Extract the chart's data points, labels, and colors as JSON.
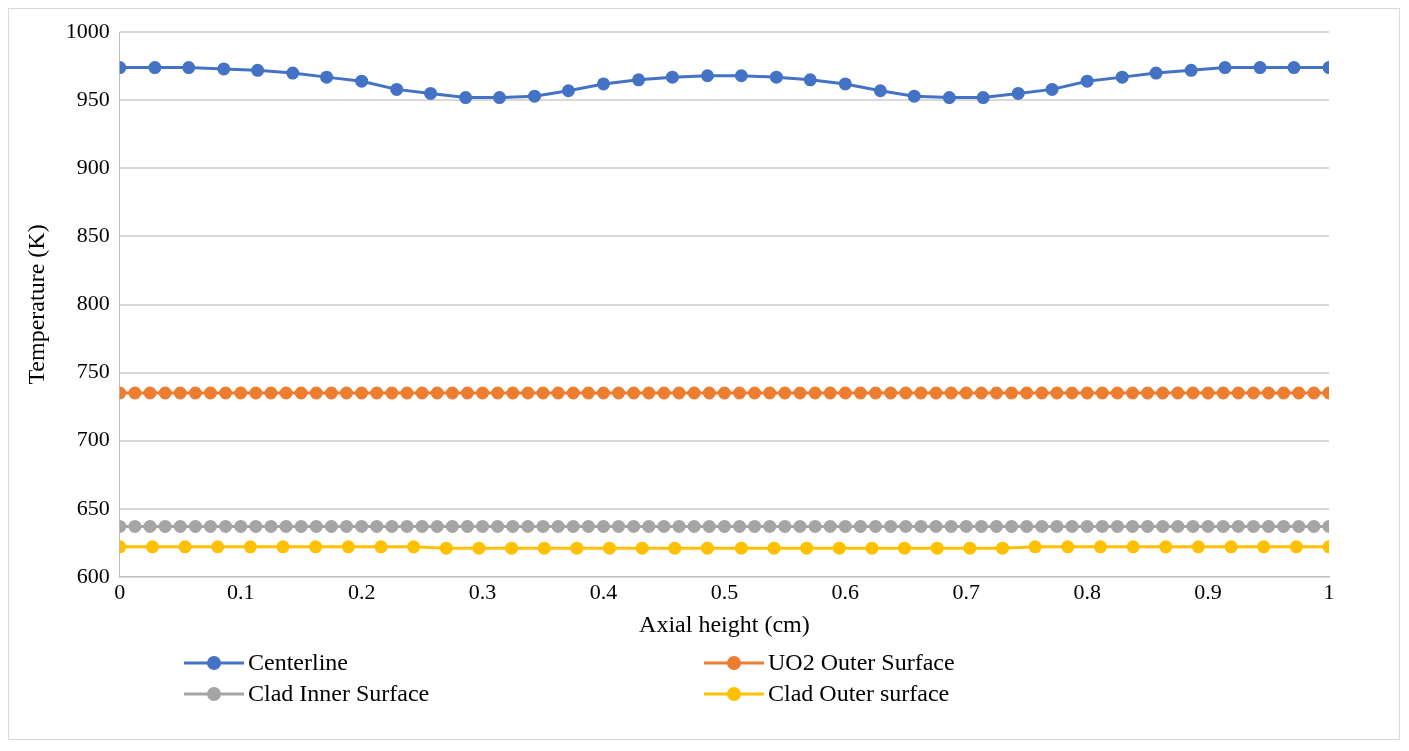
{
  "chart_data": {
    "type": "line",
    "xlabel": "Axial height (cm)",
    "ylabel": "Temperature (K)",
    "xlim": [
      0,
      1
    ],
    "xticks": [
      0,
      0.1,
      0.2,
      0.3,
      0.4,
      0.5,
      0.6,
      0.7,
      0.8,
      0.9,
      1
    ],
    "ylim": [
      600,
      1000
    ],
    "yticks": [
      600,
      650,
      700,
      750,
      800,
      850,
      900,
      950,
      1000
    ],
    "grid": "y",
    "legend": "bottom",
    "marker": "circle",
    "line_style": "solid",
    "series": [
      {
        "name": "Centerline",
        "color": "#4472c4",
        "x": [
          0,
          0.029,
          0.057,
          0.086,
          0.114,
          0.143,
          0.171,
          0.2,
          0.229,
          0.257,
          0.286,
          0.314,
          0.343,
          0.371,
          0.4,
          0.429,
          0.457,
          0.486,
          0.514,
          0.543,
          0.571,
          0.6,
          0.629,
          0.657,
          0.686,
          0.714,
          0.743,
          0.771,
          0.8,
          0.829,
          0.857,
          0.886,
          0.914,
          0.943,
          0.971,
          1
        ],
        "values": [
          974,
          974,
          974,
          973,
          972,
          970,
          967,
          964,
          958,
          955,
          952,
          952,
          953,
          957,
          962,
          965,
          967,
          968,
          968,
          967,
          965,
          962,
          957,
          953,
          952,
          952,
          955,
          958,
          964,
          967,
          970,
          972,
          974,
          974,
          974,
          974
        ]
      },
      {
        "name": "UO2 Outer Surface",
        "color": "#ed7d31",
        "x": [
          0,
          0.0125,
          0.025,
          0.0375,
          0.05,
          0.0625,
          0.075,
          0.0875,
          0.1,
          0.1125,
          0.125,
          0.1375,
          0.15,
          0.1625,
          0.175,
          0.1875,
          0.2,
          0.2125,
          0.225,
          0.2375,
          0.25,
          0.2625,
          0.275,
          0.2875,
          0.3,
          0.3125,
          0.325,
          0.3375,
          0.35,
          0.3625,
          0.375,
          0.3875,
          0.4,
          0.4125,
          0.425,
          0.4375,
          0.45,
          0.4625,
          0.475,
          0.4875,
          0.5,
          0.5125,
          0.525,
          0.5375,
          0.55,
          0.5625,
          0.575,
          0.5875,
          0.6,
          0.6125,
          0.625,
          0.6375,
          0.65,
          0.6625,
          0.675,
          0.6875,
          0.7,
          0.7125,
          0.725,
          0.7375,
          0.75,
          0.7625,
          0.775,
          0.7875,
          0.8,
          0.8125,
          0.825,
          0.8375,
          0.85,
          0.8625,
          0.875,
          0.8875,
          0.9,
          0.9125,
          0.925,
          0.9375,
          0.95,
          0.9625,
          0.975,
          0.9875,
          1
        ],
        "values": [
          735,
          735,
          735,
          735,
          735,
          735,
          735,
          735,
          735,
          735,
          735,
          735,
          735,
          735,
          735,
          735,
          735,
          735,
          735,
          735,
          735,
          735,
          735,
          735,
          735,
          735,
          735,
          735,
          735,
          735,
          735,
          735,
          735,
          735,
          735,
          735,
          735,
          735,
          735,
          735,
          735,
          735,
          735,
          735,
          735,
          735,
          735,
          735,
          735,
          735,
          735,
          735,
          735,
          735,
          735,
          735,
          735,
          735,
          735,
          735,
          735,
          735,
          735,
          735,
          735,
          735,
          735,
          735,
          735,
          735,
          735,
          735,
          735,
          735,
          735,
          735,
          735,
          735,
          735,
          735,
          735
        ]
      },
      {
        "name": "Clad Inner Surface",
        "color": "#a5a5a5",
        "x": [
          0,
          0.0125,
          0.025,
          0.0375,
          0.05,
          0.0625,
          0.075,
          0.0875,
          0.1,
          0.1125,
          0.125,
          0.1375,
          0.15,
          0.1625,
          0.175,
          0.1875,
          0.2,
          0.2125,
          0.225,
          0.2375,
          0.25,
          0.2625,
          0.275,
          0.2875,
          0.3,
          0.3125,
          0.325,
          0.3375,
          0.35,
          0.3625,
          0.375,
          0.3875,
          0.4,
          0.4125,
          0.425,
          0.4375,
          0.45,
          0.4625,
          0.475,
          0.4875,
          0.5,
          0.5125,
          0.525,
          0.5375,
          0.55,
          0.5625,
          0.575,
          0.5875,
          0.6,
          0.6125,
          0.625,
          0.6375,
          0.65,
          0.6625,
          0.675,
          0.6875,
          0.7,
          0.7125,
          0.725,
          0.7375,
          0.75,
          0.7625,
          0.775,
          0.7875,
          0.8,
          0.8125,
          0.825,
          0.8375,
          0.85,
          0.8625,
          0.875,
          0.8875,
          0.9,
          0.9125,
          0.925,
          0.9375,
          0.95,
          0.9625,
          0.975,
          0.9875,
          1
        ],
        "values": [
          637,
          637,
          637,
          637,
          637,
          637,
          637,
          637,
          637,
          637,
          637,
          637,
          637,
          637,
          637,
          637,
          637,
          637,
          637,
          637,
          637,
          637,
          637,
          637,
          637,
          637,
          637,
          637,
          637,
          637,
          637,
          637,
          637,
          637,
          637,
          637,
          637,
          637,
          637,
          637,
          637,
          637,
          637,
          637,
          637,
          637,
          637,
          637,
          637,
          637,
          637,
          637,
          637,
          637,
          637,
          637,
          637,
          637,
          637,
          637,
          637,
          637,
          637,
          637,
          637,
          637,
          637,
          637,
          637,
          637,
          637,
          637,
          637,
          637,
          637,
          637,
          637,
          637,
          637,
          637,
          637
        ]
      },
      {
        "name": "Clad Outer surface",
        "color": "#ffc000",
        "x": [
          0,
          0.027,
          0.054,
          0.081,
          0.108,
          0.135,
          0.162,
          0.189,
          0.216,
          0.243,
          0.27,
          0.297,
          0.324,
          0.351,
          0.378,
          0.405,
          0.432,
          0.459,
          0.486,
          0.514,
          0.541,
          0.568,
          0.595,
          0.622,
          0.649,
          0.676,
          0.703,
          0.73,
          0.757,
          0.784,
          0.811,
          0.838,
          0.865,
          0.892,
          0.919,
          0.946,
          0.973,
          1
        ],
        "values": [
          622,
          622,
          622,
          622,
          622,
          622,
          622,
          622,
          622,
          622,
          621,
          621,
          621,
          621,
          621,
          621,
          621,
          621,
          621,
          621,
          621,
          621,
          621,
          621,
          621,
          621,
          621,
          621,
          622,
          622,
          622,
          622,
          622,
          622,
          622,
          622,
          622,
          622
        ]
      }
    ]
  }
}
